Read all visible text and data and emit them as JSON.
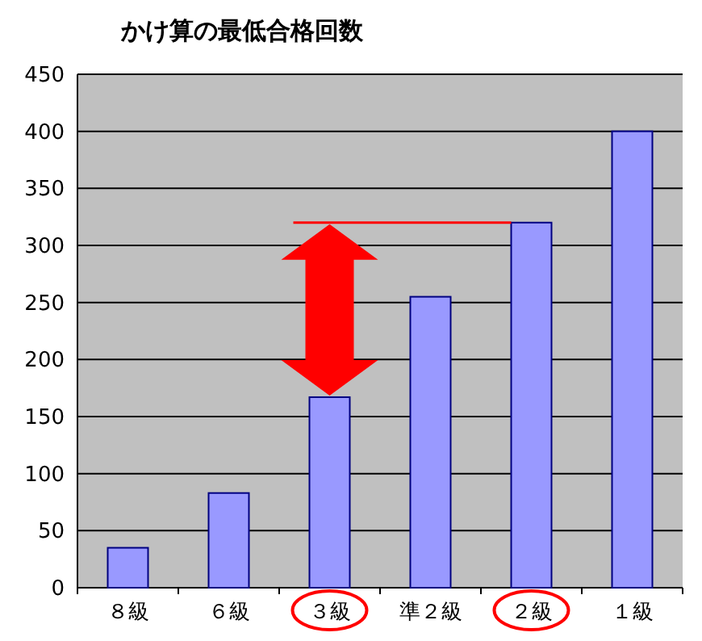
{
  "chart_data": {
    "type": "bar",
    "title": "かけ算の最低合格回数",
    "categories": [
      "８級",
      "６級",
      "３級",
      "準２級",
      "２級",
      "１級"
    ],
    "values": [
      35,
      83,
      167,
      255,
      320,
      400
    ],
    "color": "#9999ff",
    "ylim": [
      0,
      450
    ],
    "yticks": [
      0,
      50,
      100,
      150,
      200,
      250,
      300,
      350,
      400,
      450
    ],
    "grid": "y",
    "ref_lines": [
      {
        "axis": "y",
        "value": 320,
        "color": "#ff0000"
      }
    ]
  }
}
